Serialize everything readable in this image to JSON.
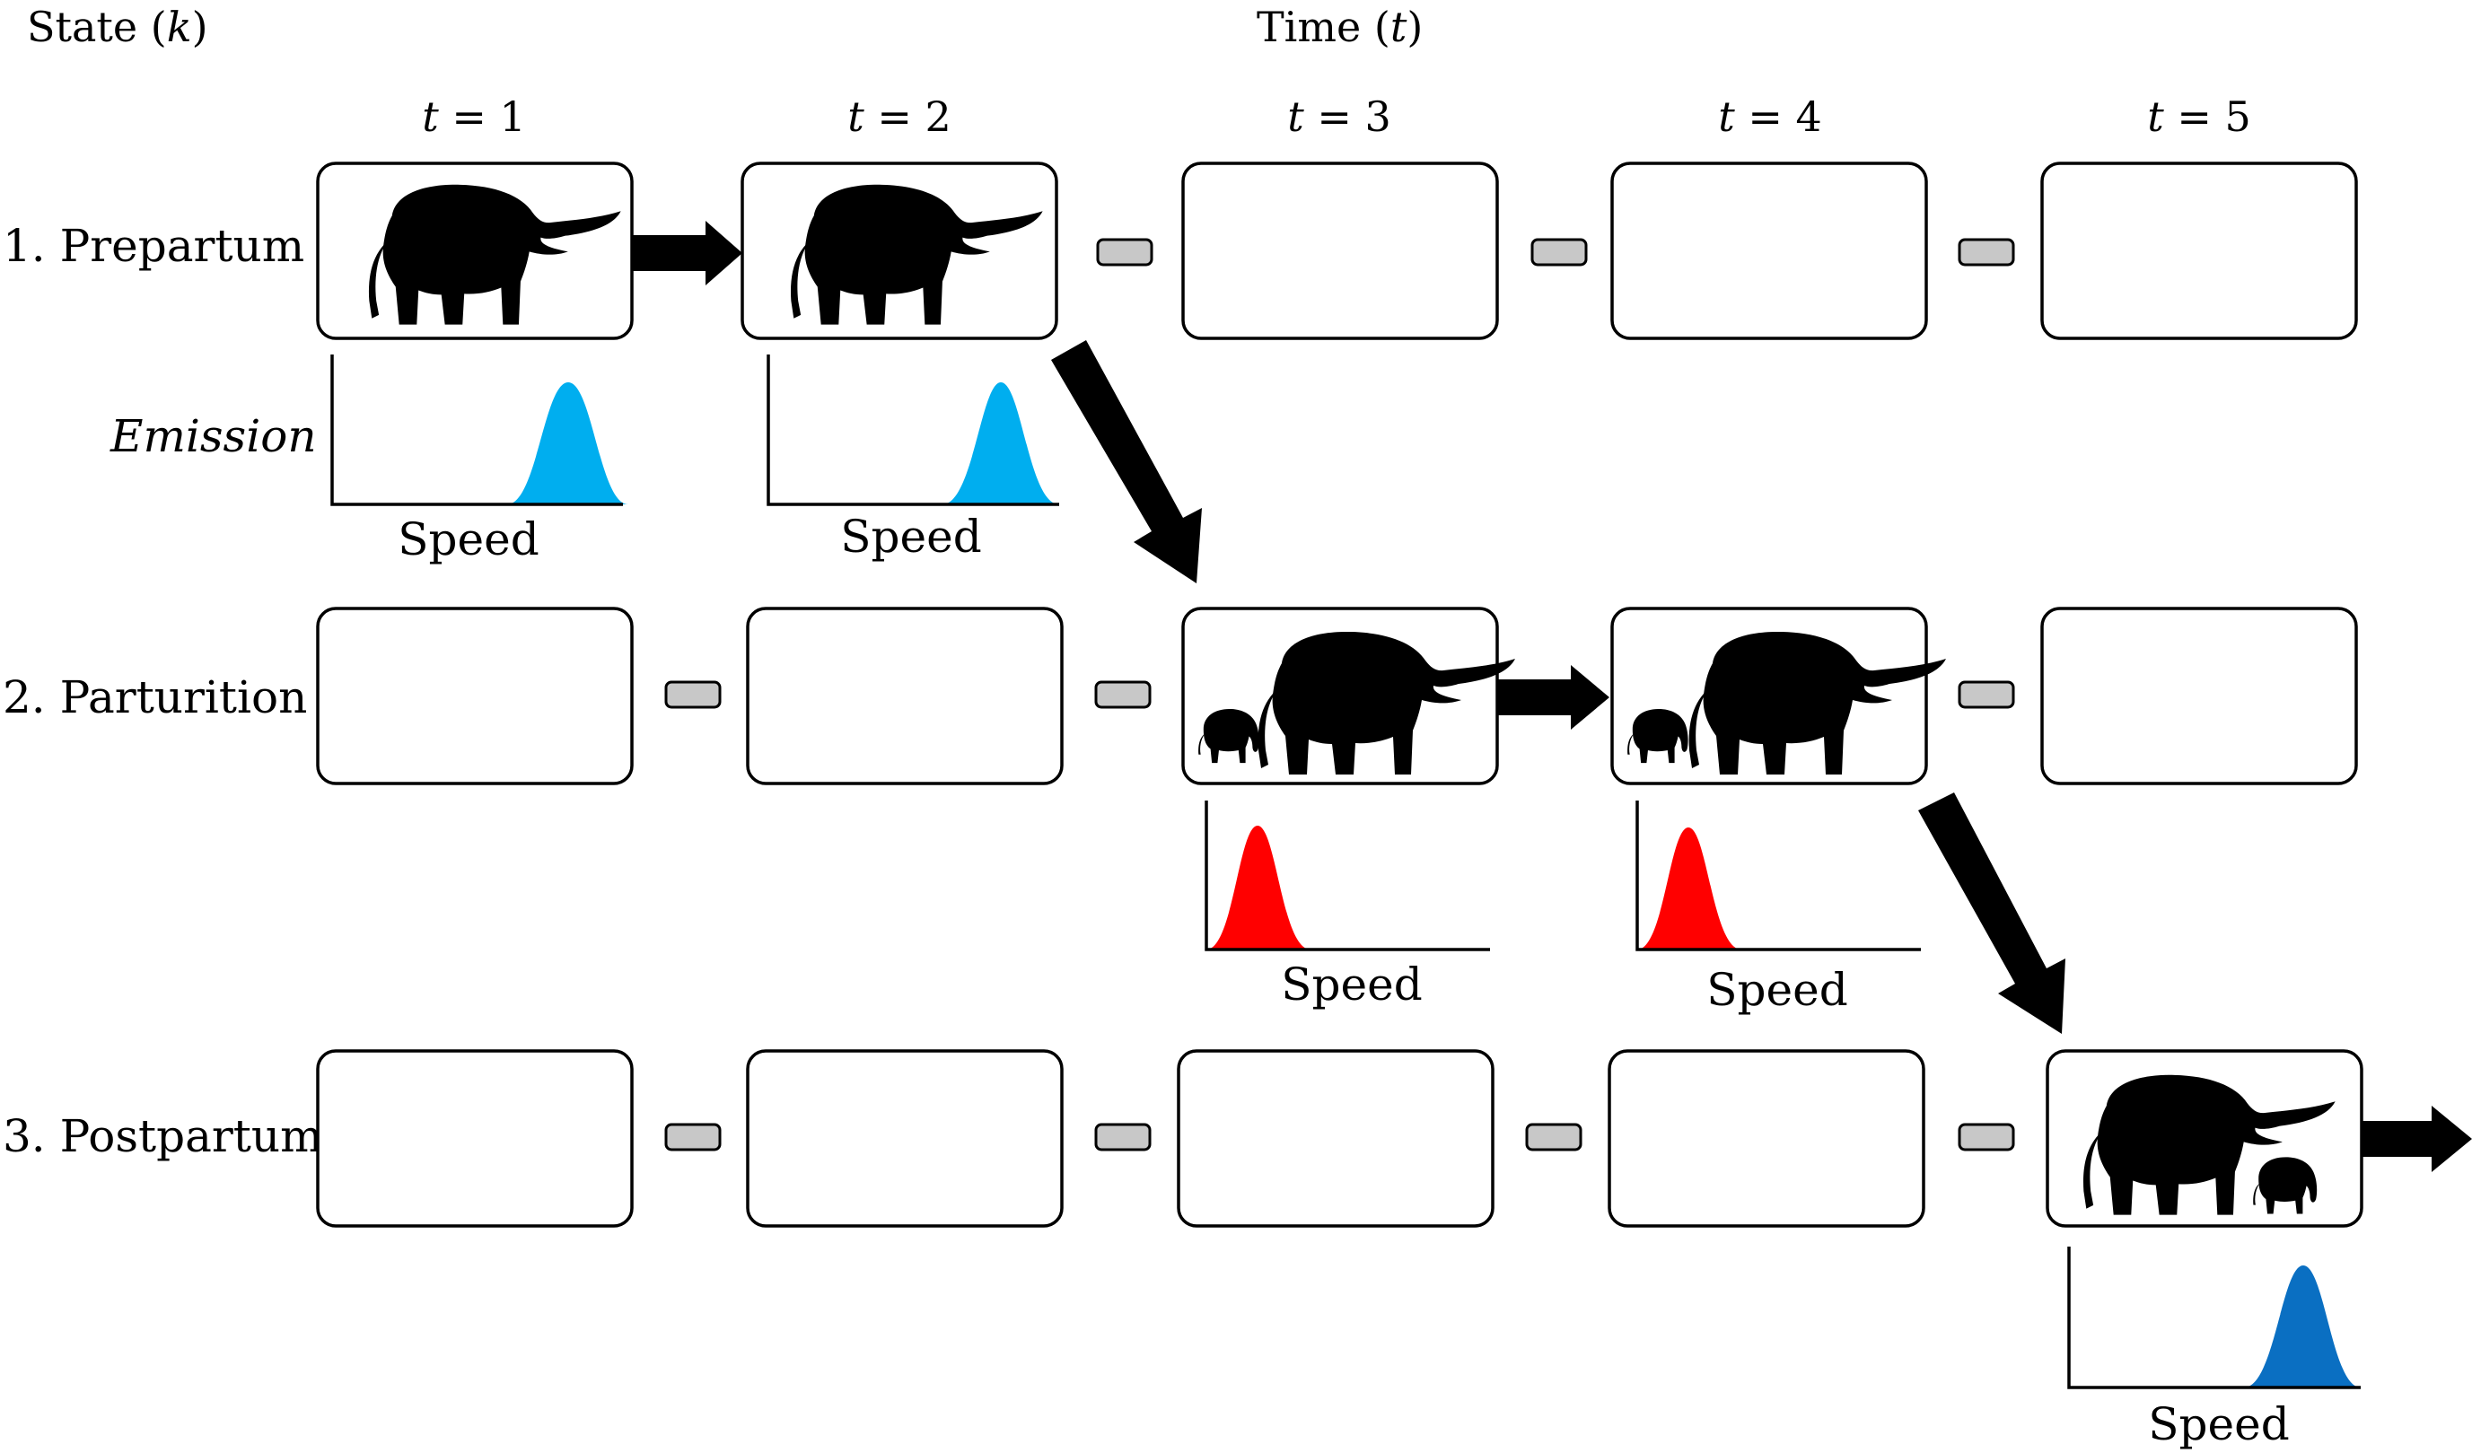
{
  "header": {
    "state_label": "State (",
    "state_symbol": "k",
    "close_paren": ")",
    "time_label": "Time (",
    "time_symbol": "t"
  },
  "time_steps": [
    {
      "var": "t",
      "eq": " = 1"
    },
    {
      "var": "t",
      "eq": " = 2"
    },
    {
      "var": "t",
      "eq": " = 3"
    },
    {
      "var": "t",
      "eq": " = 4"
    },
    {
      "var": "t",
      "eq": " = 5"
    }
  ],
  "states": [
    {
      "label": "1. Prepartum"
    },
    {
      "label": "2. Parturition"
    },
    {
      "label": "3. Postpartum"
    }
  ],
  "emission_label": "Emission",
  "speed_label": "Speed",
  "colors": {
    "prepartum": "#00aeef",
    "parturition": "#ff0000",
    "postpartum": "#0a6fc2",
    "pill": "#c8c8c8"
  },
  "icons": {
    "adult": "elephant-adult-icon",
    "calf": "elephant-calf-icon"
  }
}
